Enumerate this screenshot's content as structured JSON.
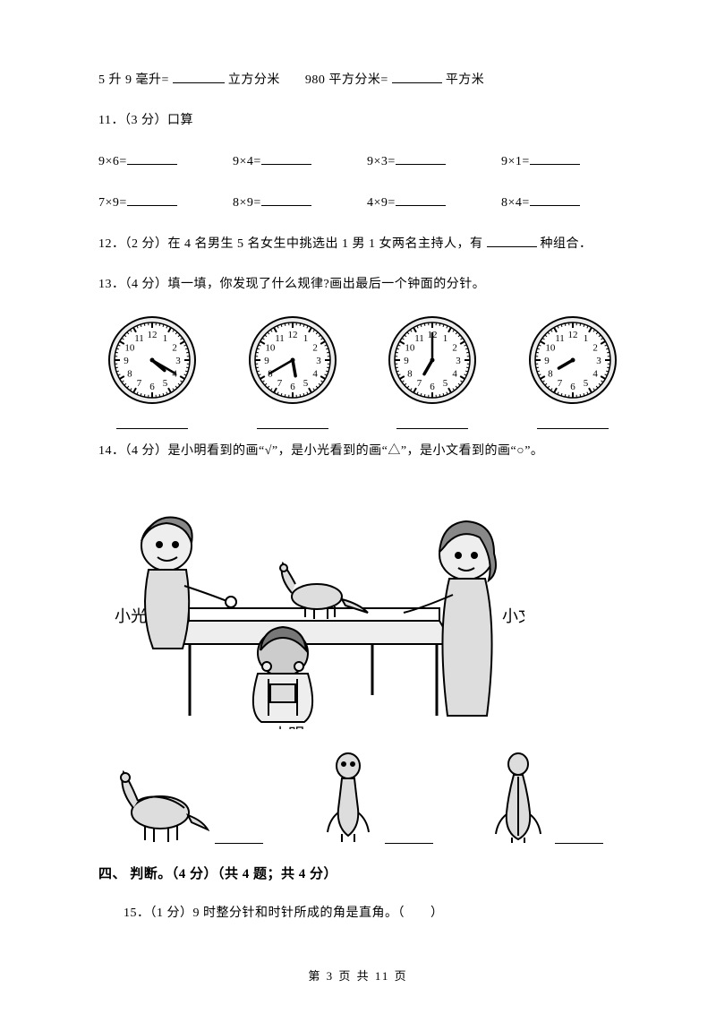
{
  "q10": {
    "p1a": "5 升 9 毫升=",
    "p1b": "立方分米",
    "p2a": "980 平方分米=",
    "p2b": "平方米"
  },
  "q11": {
    "label": "11．（3 分）口算",
    "row1": [
      "9×6=",
      "9×4=",
      "9×3=",
      "9×1="
    ],
    "row2": [
      "7×9=",
      "8×9=",
      "4×9=",
      "8×4="
    ]
  },
  "q12": {
    "a": "12．（2 分）在 4 名男生 5 名女生中挑选出 1 男 1 女两名主持人，有",
    "b": " 种组合．"
  },
  "q13": {
    "label": "13．（4 分）填一填，你发现了什么规律?画出最后一个钟面的分针。",
    "clocks": [
      {
        "h": 4,
        "m": 20
      },
      {
        "h": 5,
        "m": 40
      },
      {
        "h": 7,
        "m": 0
      },
      {
        "h": 8,
        "m": 0,
        "noMinute": true
      }
    ]
  },
  "q14": {
    "label": "14．（4 分）是小明看到的画“√”，是小光看到的画“△”，是小文看到的画“○”。",
    "names": {
      "left": "小光",
      "front": "小明",
      "right": "小文"
    }
  },
  "sec4": "四、 判断。（4 分）（共 4 题；共 4 分）",
  "q15": "15．（1 分）9 时整分针和时针所成的角是直角。（　　）",
  "footer": "第 3 页 共 11 页",
  "style": {
    "blankShort": 58,
    "blankMed": 56,
    "cellWidth": 146,
    "clockBg": "#ececec",
    "clockRing": "#000"
  }
}
